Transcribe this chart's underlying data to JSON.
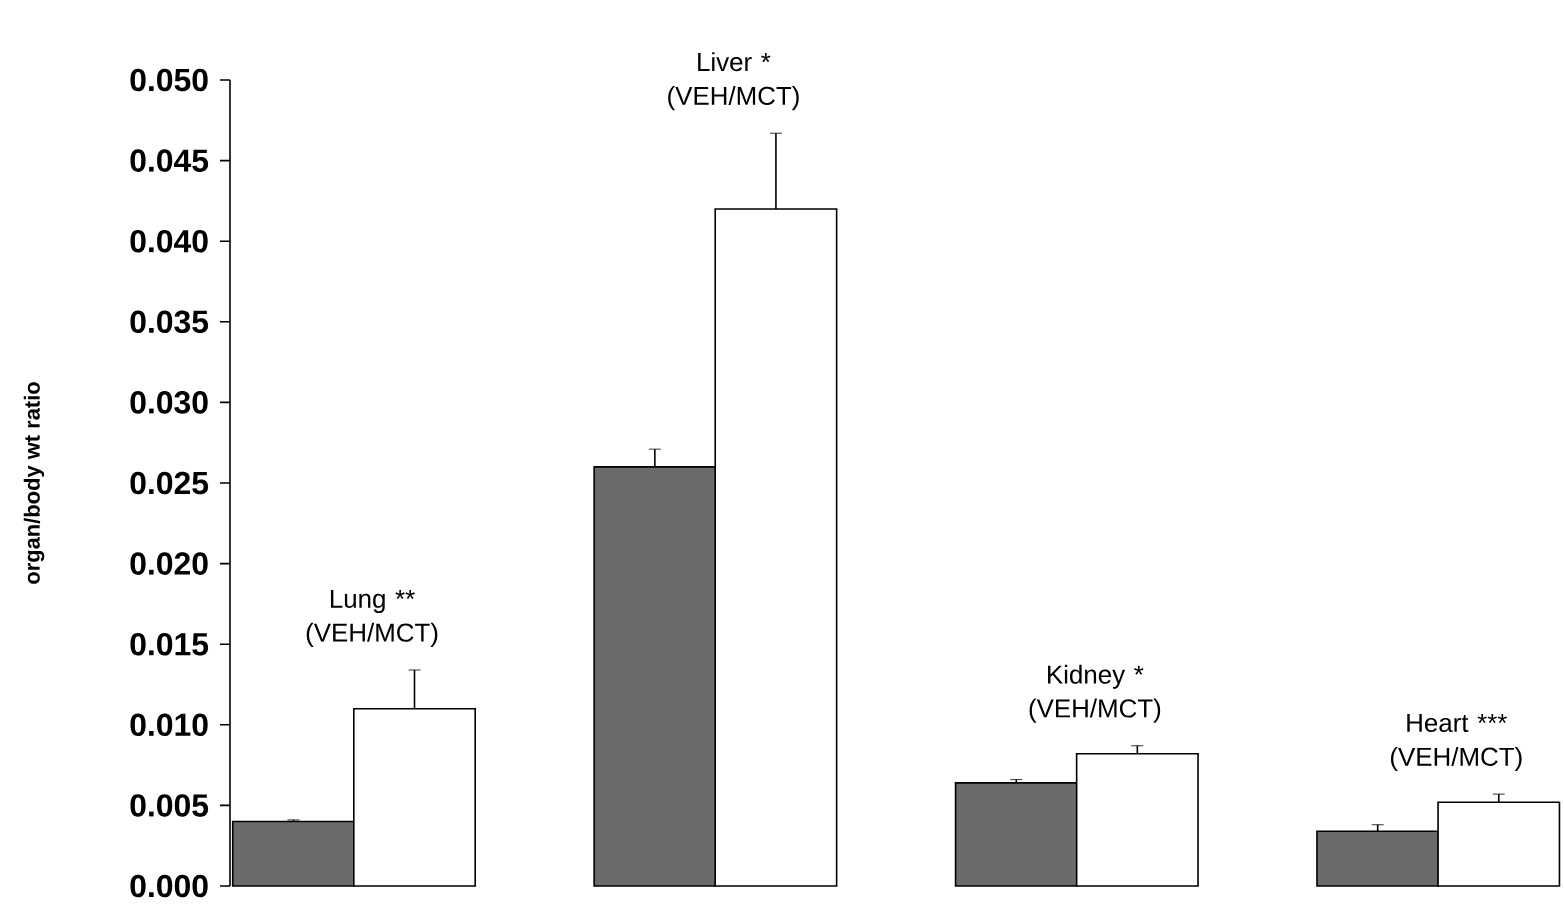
{
  "chart_data": {
    "type": "bar",
    "ylabel": "organ/body wt ratio",
    "categories": [
      null,
      null,
      null,
      null
    ],
    "series": [
      {
        "color": "#6b6b6b",
        "values": [
          0.004,
          0.026,
          0.0064,
          0.0034
        ],
        "errors": [
          0.0001,
          0.0011,
          0.0002,
          0.0004
        ]
      },
      {
        "color": "#ffffff",
        "values": [
          0.011,
          0.042,
          0.0082,
          0.0052
        ],
        "errors": [
          0.0024,
          0.0047,
          0.0005,
          0.0005
        ]
      }
    ],
    "ylim": [
      0,
      0.05
    ],
    "yticks": [
      {
        "value": 0,
        "label": "0.000"
      },
      {
        "value": 0.005,
        "label": "0.005"
      },
      {
        "value": 0.01,
        "label": "0.010"
      },
      {
        "value": 0.015,
        "label": "0.015"
      },
      {
        "value": 0.02,
        "label": "0.020"
      },
      {
        "value": 0.025,
        "label": "0.025"
      },
      {
        "value": 0.03,
        "label": "0.030"
      },
      {
        "value": 0.035,
        "label": "0.035"
      },
      {
        "value": 0.04,
        "label": "0.040"
      },
      {
        "value": 0.045,
        "label": "0.045"
      },
      {
        "value": 0.05,
        "label": "0.050"
      }
    ],
    "annotations": [
      "Lung ** (VEH/MCT)",
      "Liver * (VEH/MCT)",
      "Kidney * (VEH/MCT)",
      "Heart *** (VEH/MCT)"
    ],
    "grid": false
  }
}
